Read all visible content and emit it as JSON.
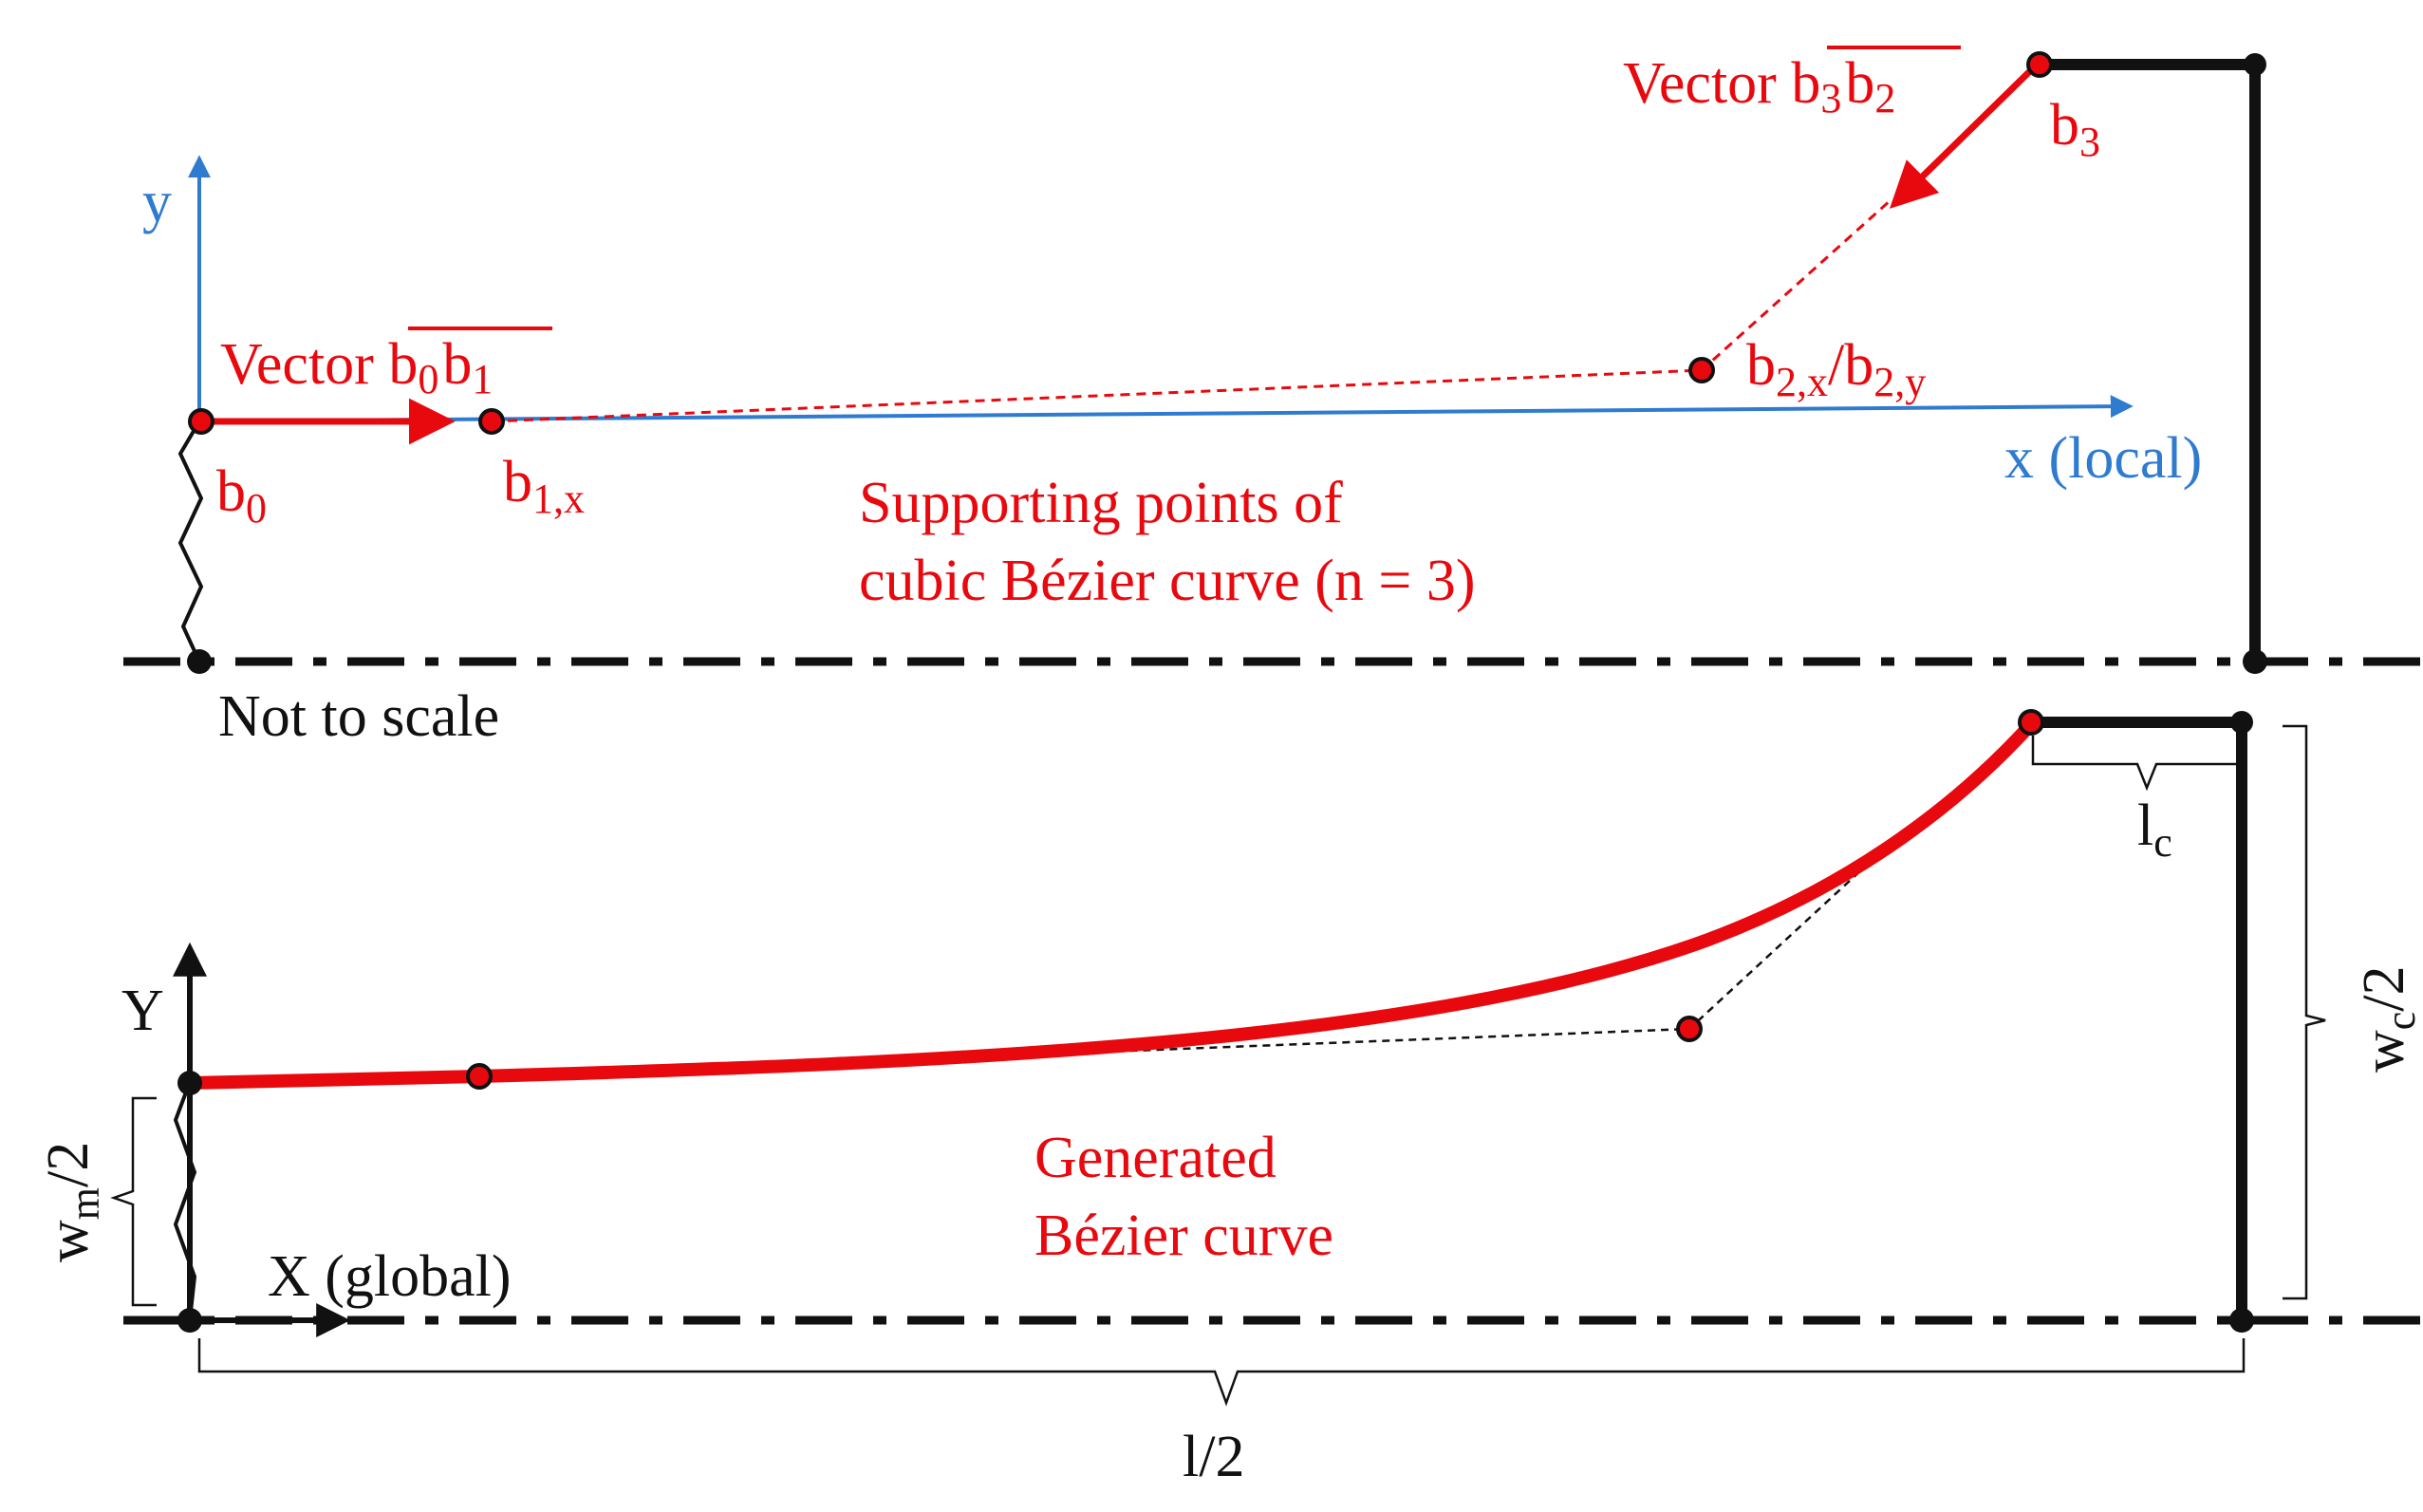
{
  "colors": {
    "accent_red": "#e8090f",
    "axis_blue": "#2f7bd0",
    "outline_black": "#111111"
  },
  "top": {
    "vector_b0b1": {
      "prefix": "Vector ",
      "overline_a": "b",
      "sub_a": "0",
      "overline_b": "b",
      "sub_b": "1"
    },
    "vector_b3b2": {
      "prefix": "Vector ",
      "overline_a": "b",
      "sub_a": "3",
      "overline_b": "b",
      "sub_b": "2"
    },
    "axis_y": "y",
    "axis_x": "x (local)",
    "point_b0": {
      "base": "b",
      "sub": "0"
    },
    "point_b1x": {
      "base": "b",
      "sub": "1,x"
    },
    "point_b2": {
      "base1": "b",
      "sub1": "2,x",
      "sep": "/",
      "base2": "b",
      "sub2": "2,y"
    },
    "point_b3": {
      "base": "b",
      "sub": "3"
    },
    "caption_line1": "Supporting  points of",
    "caption_line2": "cubic Bézier curve (n = 3)",
    "note": "Not to scale"
  },
  "bottom": {
    "axis_y": "Y",
    "axis_x": "X (global)",
    "caption_line1": "Generated",
    "caption_line2": "Bézier curve",
    "dim_lc": {
      "base": "l",
      "sub": "c"
    },
    "dim_wc": {
      "base": "w",
      "sub": "c",
      "tail": "/2"
    },
    "dim_wm": {
      "base": "w",
      "sub": "m",
      "tail": "/2"
    },
    "dim_l": "l/2"
  }
}
